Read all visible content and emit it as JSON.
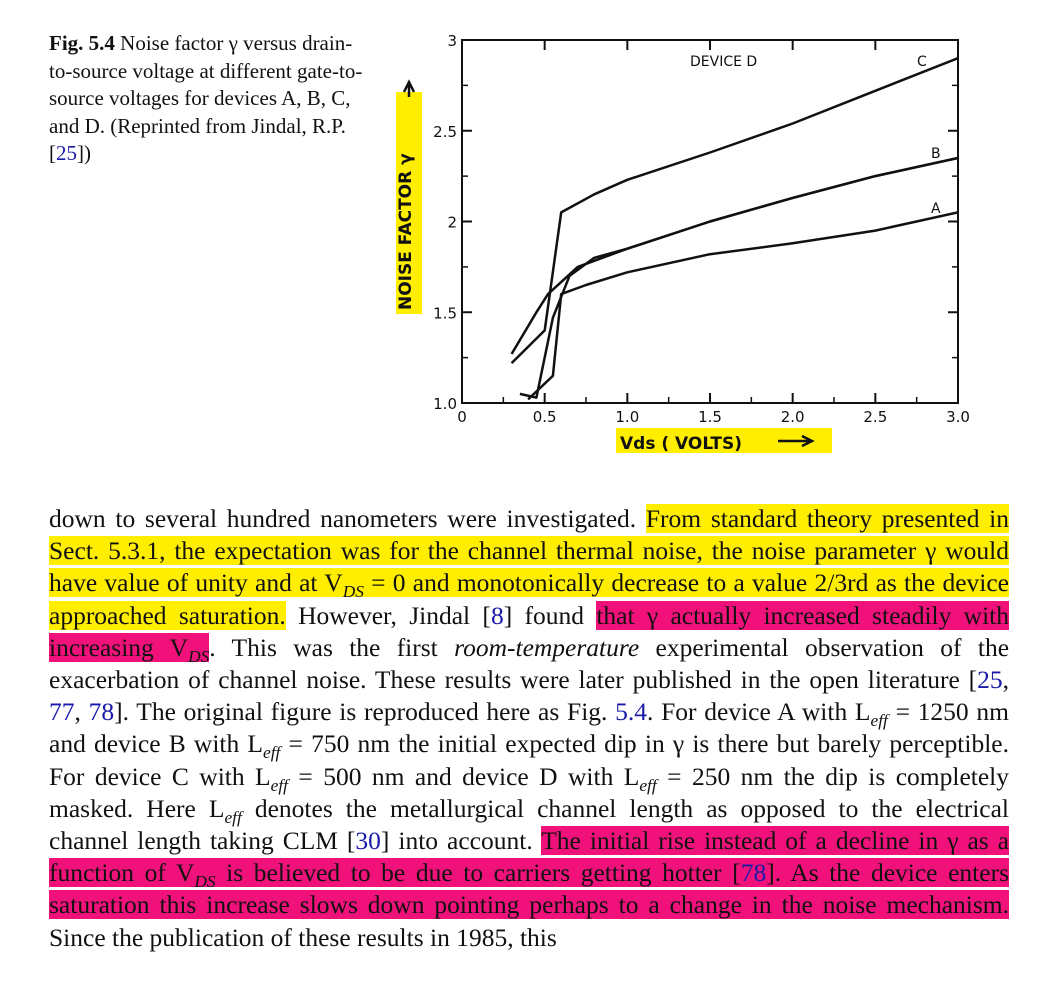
{
  "caption": {
    "fig_label": "Fig. 5.4",
    "text_a": "Noise factor γ versus drain-to-source voltage at different gate-to-source voltages for devices A, B, C, and D. (Reprinted from Jindal, R.P. [",
    "ref": "25",
    "text_b": "])"
  },
  "chart_data": {
    "type": "line",
    "xlabel": "Vds ( VOLTS)",
    "ylabel": "NOISE FACTOR γ",
    "xlim": [
      0,
      3.0
    ],
    "ylim": [
      1.0,
      3.0
    ],
    "x_ticks": [
      "0",
      "0.5",
      "1.0",
      "1.5",
      "2.0",
      "2.5",
      "3.0"
    ],
    "y_ticks": [
      "1.0",
      "1.5",
      "2",
      "2.5",
      "3"
    ],
    "legend_title": "DEVICE",
    "series": [
      {
        "name": "D",
        "points": [
          [
            0.3,
            1.27
          ],
          [
            0.45,
            1.5
          ],
          [
            0.52,
            1.6
          ],
          [
            0.7,
            1.75
          ],
          [
            1.0,
            1.85
          ],
          [
            1.5,
            2.0
          ],
          [
            2.0,
            2.13
          ],
          [
            2.5,
            2.25
          ],
          [
            3.0,
            2.35
          ]
        ]
      },
      {
        "name": "C",
        "points": [
          [
            0.3,
            1.22
          ],
          [
            0.5,
            1.4
          ],
          [
            0.6,
            2.05
          ],
          [
            0.8,
            2.15
          ],
          [
            1.0,
            2.23
          ],
          [
            1.5,
            2.38
          ],
          [
            2.0,
            2.54
          ],
          [
            2.5,
            2.72
          ],
          [
            3.0,
            2.9
          ]
        ]
      },
      {
        "name": "B",
        "points": [
          [
            0.35,
            1.05
          ],
          [
            0.45,
            1.03
          ],
          [
            0.55,
            1.47
          ],
          [
            0.65,
            1.7
          ],
          [
            0.8,
            1.8
          ],
          [
            1.0,
            1.85
          ],
          [
            1.5,
            2.0
          ],
          [
            2.0,
            2.13
          ],
          [
            2.5,
            2.25
          ],
          [
            3.0,
            2.35
          ]
        ]
      },
      {
        "name": "A",
        "points": [
          [
            0.4,
            1.02
          ],
          [
            0.55,
            1.15
          ],
          [
            0.6,
            1.6
          ],
          [
            0.75,
            1.65
          ],
          [
            1.0,
            1.72
          ],
          [
            1.5,
            1.82
          ],
          [
            2.0,
            1.88
          ],
          [
            2.5,
            1.95
          ],
          [
            3.0,
            2.05
          ]
        ]
      }
    ]
  },
  "chart_labels": {
    "device_word": "DEVICE",
    "d": "D",
    "c": "C",
    "b": "B",
    "a": "A"
  },
  "body": {
    "s1": "down to several hundred nanometers were investigated. ",
    "s2": "From standard theory presented in Sect. 5.3.1, the expectation was for the channel thermal noise, the noise parameter γ would have value of unity and at V",
    "s2_sub": "DS",
    "s2b": " = 0 and monotonically decrease to a value 2/3rd as the device approached saturation.",
    "s3": " However, Jindal [",
    "ref8": "8",
    "s3b": "] found ",
    "s4": "that γ actually increased steadily with increasing V",
    "s4_sub": "DS",
    "s5": ". This was the first ",
    "s5_i": "room-temperature",
    "s6": " experimental observation of the exacerbation of channel noise. These results were later published in the open literature [",
    "ref25": "25",
    "c1": ", ",
    "ref77": "77",
    "c2": ", ",
    "ref78": "78",
    "s7": "]. The original figure is reproduced here as Fig. ",
    "ref54": "5.4",
    "s8": ". For device A with L",
    "sub_eff": "eff",
    "s9": " = 1250 nm and device B with L",
    "s10": " = 750 nm the initial expected dip in γ is there but barely perceptible. For device C with L",
    "s11": " = 500 nm and device D with L",
    "s12": " = 250 nm the dip is completely masked. Here L",
    "s13": " denotes the metallurgical channel length as opposed to the electrical channel length taking CLM [",
    "ref30": "30",
    "s14": "] into account. ",
    "s15": "The initial rise instead of a decline in γ as a function of V",
    "s15_sub": "DS",
    "s16": " is believed to be due to carriers getting hotter [",
    "ref78b": "78",
    "s17": "]. As the device enters saturation this increase slows down pointing perhaps to a change in the noise mechanism.",
    "s18": " Since the publication of these results in 1985, this"
  }
}
